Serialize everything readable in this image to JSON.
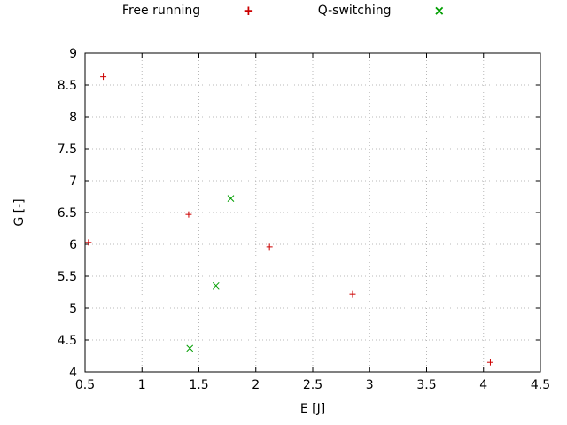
{
  "chart_data": {
    "type": "scatter",
    "title": "",
    "xlabel": "E [J]",
    "ylabel": "G [-]",
    "xlim": [
      0.5,
      4.5
    ],
    "ylim": [
      4,
      9
    ],
    "xticks": [
      0.5,
      1,
      1.5,
      2,
      2.5,
      3,
      3.5,
      4,
      4.5
    ],
    "xtick_labels": [
      "0.5",
      "1",
      "1.5",
      "2",
      "2.5",
      "3",
      "3.5",
      "4",
      "4.5"
    ],
    "yticks": [
      4,
      4.5,
      5,
      5.5,
      6,
      6.5,
      7,
      7.5,
      8,
      8.5,
      9
    ],
    "ytick_labels": [
      "4",
      "4.5",
      "5",
      "5.5",
      "6",
      "6.5",
      "7",
      "7.5",
      "8",
      "8.5",
      "9"
    ],
    "grid": true,
    "grid_color": "#b8b8b8",
    "border_color": "#000000",
    "legend_position": "top-center",
    "series": [
      {
        "name": "Free running",
        "marker": "plus",
        "glyph": "+",
        "color": "#cc0000",
        "points": [
          [
            0.53,
            6.03
          ],
          [
            0.66,
            8.63
          ],
          [
            1.41,
            6.47
          ],
          [
            2.12,
            5.96
          ],
          [
            2.85,
            5.22
          ],
          [
            4.06,
            4.15
          ]
        ]
      },
      {
        "name": "Q-switching",
        "marker": "cross",
        "glyph": "×",
        "color": "#009e00",
        "points": [
          [
            1.42,
            4.37
          ],
          [
            1.65,
            5.35
          ],
          [
            1.78,
            6.72
          ]
        ]
      }
    ]
  }
}
